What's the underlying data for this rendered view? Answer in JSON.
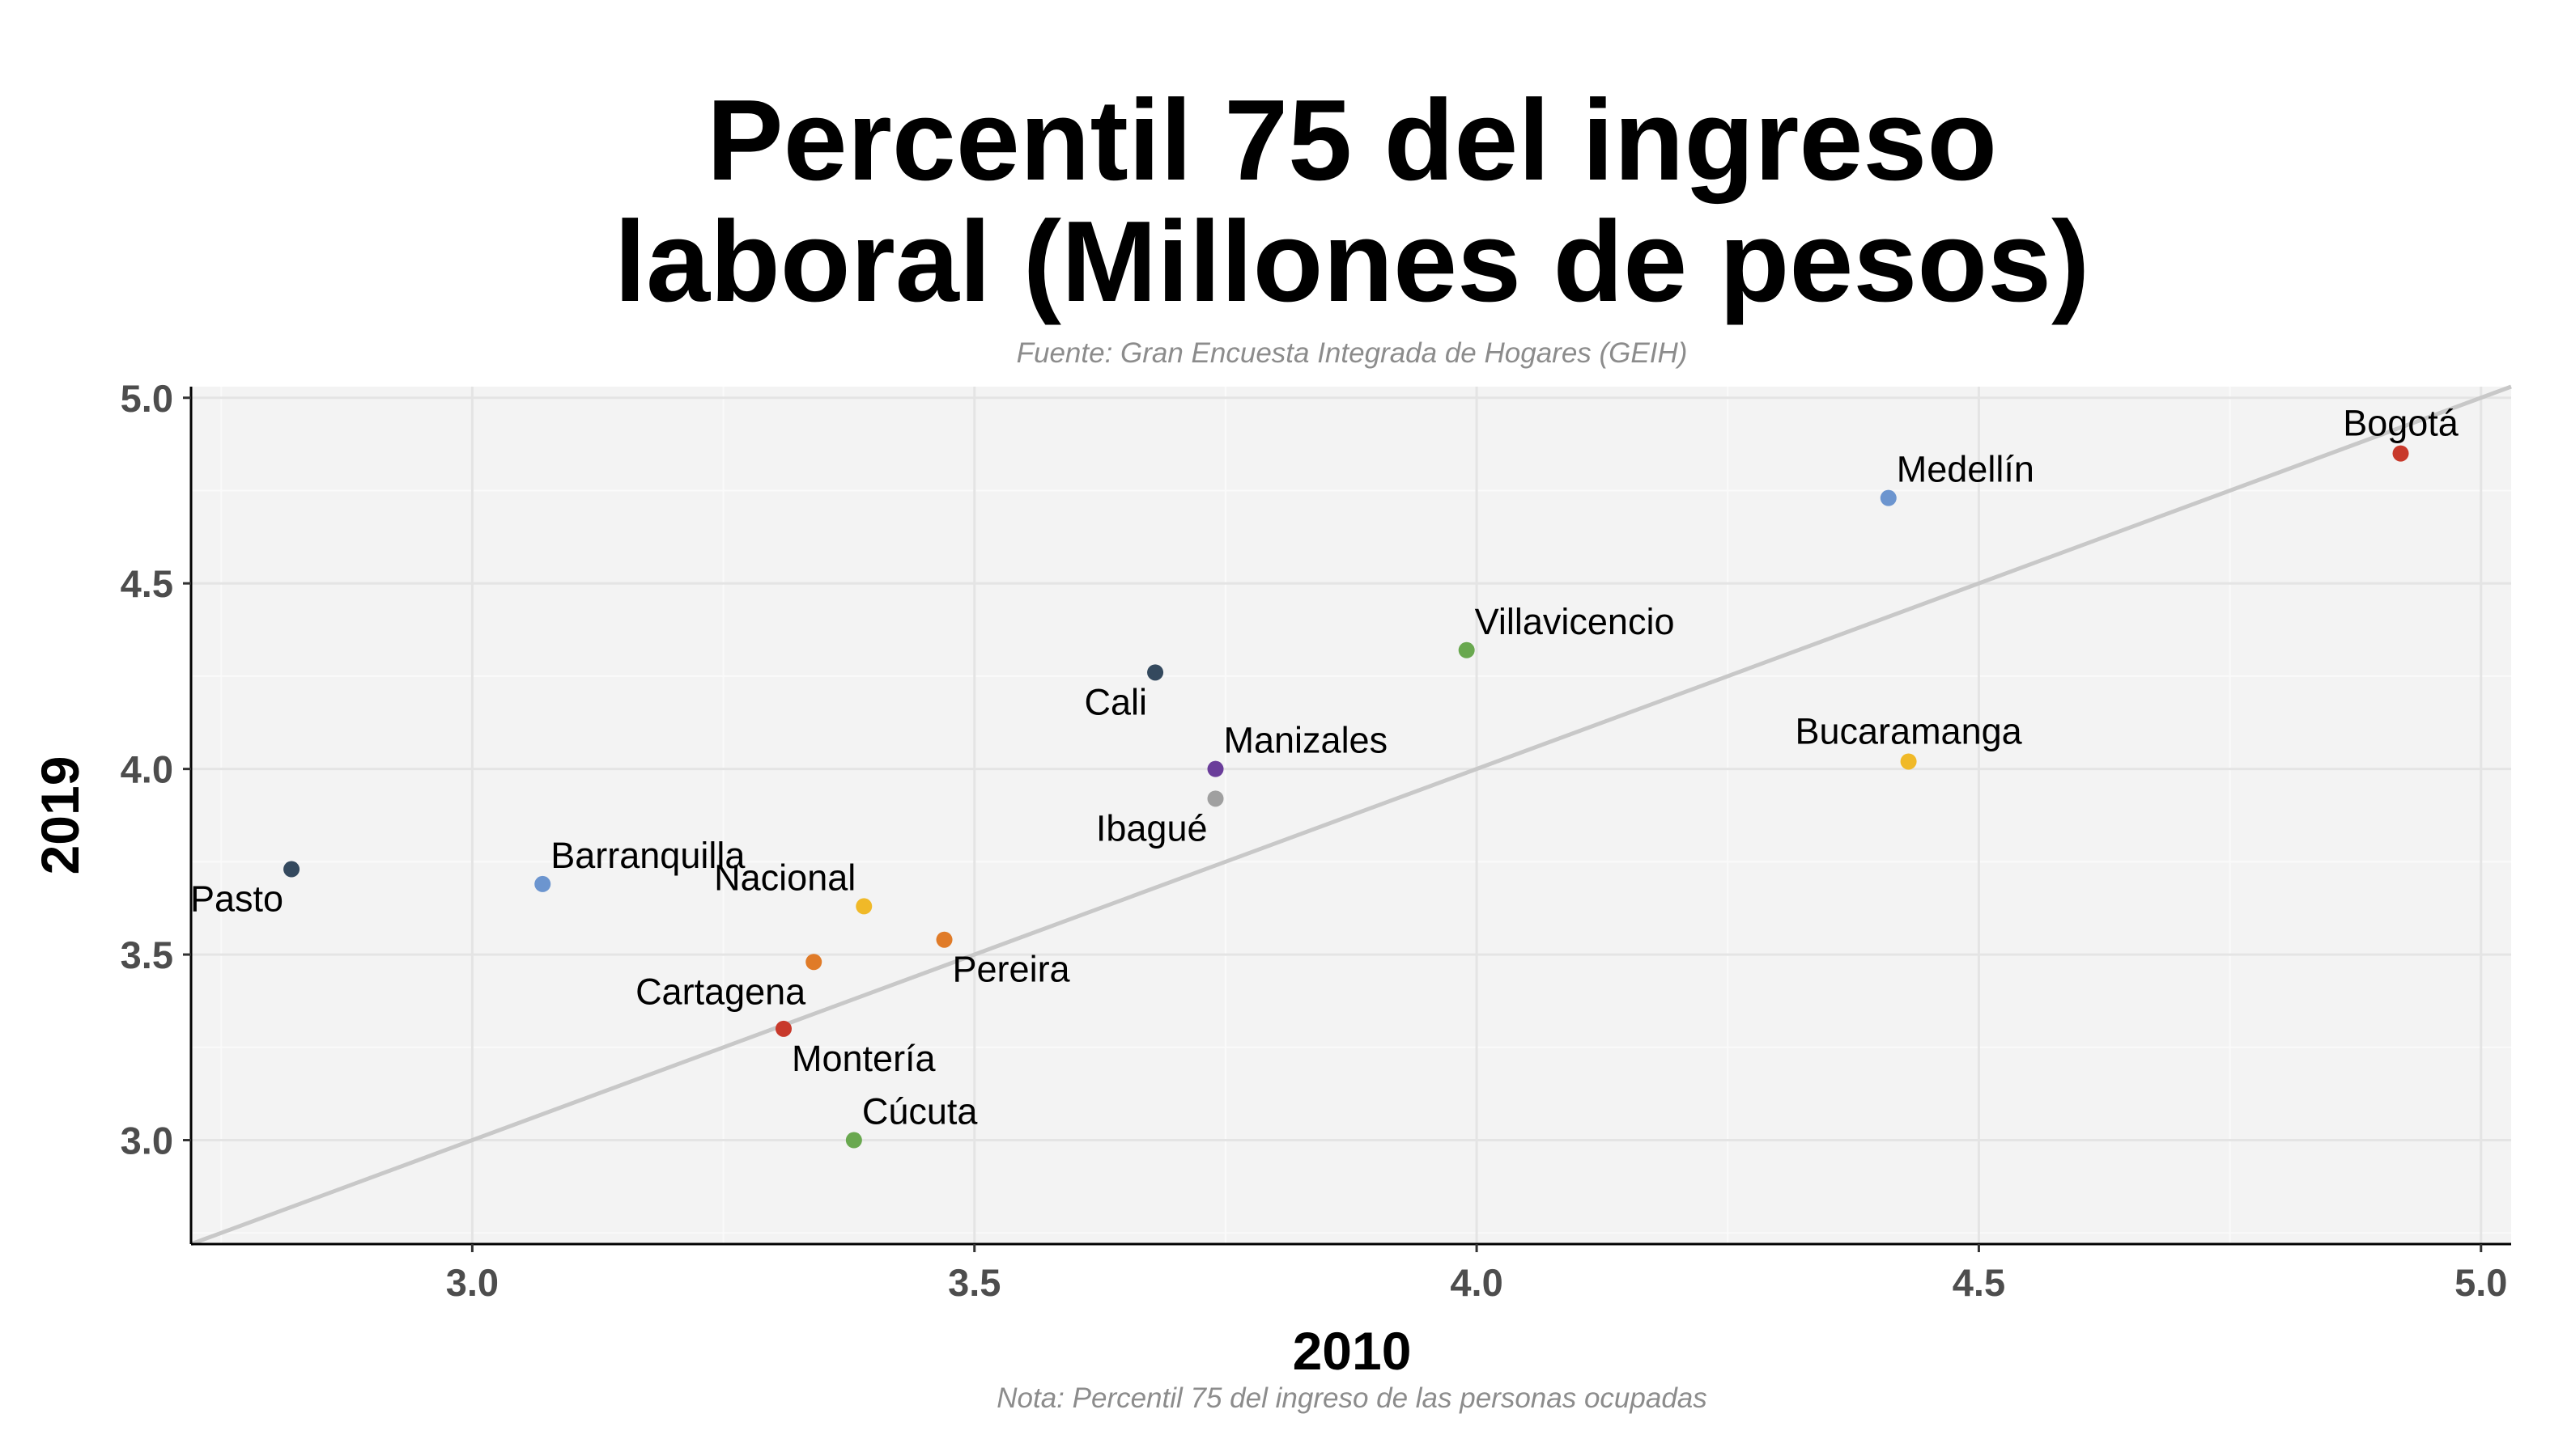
{
  "chart_data": {
    "type": "scatter",
    "title_lines": [
      "Percentil 75 del ingreso",
      "laboral (Millones de pesos)"
    ],
    "subtitle": "Fuente: Gran Encuesta Integrada de Hogares (GEIH)",
    "caption": "Nota: Percentil 75 del ingreso de las personas ocupadas",
    "xlabel": "2010",
    "ylabel": "2019",
    "xlim": [
      2.72,
      5.03
    ],
    "ylim": [
      2.72,
      5.03
    ],
    "x_ticks": [
      "3.0",
      "3.5",
      "4.0",
      "4.5",
      "5.0"
    ],
    "y_ticks": [
      "3.0",
      "3.5",
      "4.0",
      "4.5",
      "5.0"
    ],
    "grid": true,
    "reference_line": "y = x",
    "points": [
      {
        "label": "Bogotá",
        "x": 4.92,
        "y": 4.85,
        "color": "#c8392b",
        "label_pos": "above"
      },
      {
        "label": "Medellín",
        "x": 4.41,
        "y": 4.73,
        "color": "#6c95cf",
        "label_pos": "above-right"
      },
      {
        "label": "Villavicencio",
        "x": 3.99,
        "y": 4.32,
        "color": "#69a84f",
        "label_pos": "above-right"
      },
      {
        "label": "Cali",
        "x": 3.68,
        "y": 4.26,
        "color": "#34495e",
        "label_pos": "below-left"
      },
      {
        "label": "Bucaramanga",
        "x": 4.43,
        "y": 4.02,
        "color": "#f0b928",
        "label_pos": "above"
      },
      {
        "label": "Manizales",
        "x": 3.74,
        "y": 4.0,
        "color": "#6a3d9a",
        "label_pos": "above-right"
      },
      {
        "label": "Ibagué",
        "x": 3.74,
        "y": 3.92,
        "color": "#a0a0a0",
        "label_pos": "below-left"
      },
      {
        "label": "Pasto",
        "x": 2.82,
        "y": 3.73,
        "color": "#34495e",
        "label_pos": "below-left"
      },
      {
        "label": "Barranquilla",
        "x": 3.07,
        "y": 3.69,
        "color": "#6c95cf",
        "label_pos": "above-right"
      },
      {
        "label": "Nacional",
        "x": 3.39,
        "y": 3.63,
        "color": "#f0b928",
        "label_pos": "above-left"
      },
      {
        "label": "Pereira",
        "x": 3.47,
        "y": 3.54,
        "color": "#e07b28",
        "label_pos": "below-right"
      },
      {
        "label": "Cartagena",
        "x": 3.34,
        "y": 3.48,
        "color": "#e07b28",
        "label_pos": "below-left"
      },
      {
        "label": "Montería",
        "x": 3.31,
        "y": 3.3,
        "color": "#c8392b",
        "label_pos": "below-right"
      },
      {
        "label": "Cúcuta",
        "x": 3.38,
        "y": 3.0,
        "color": "#69a84f",
        "label_pos": "above-right"
      }
    ]
  }
}
